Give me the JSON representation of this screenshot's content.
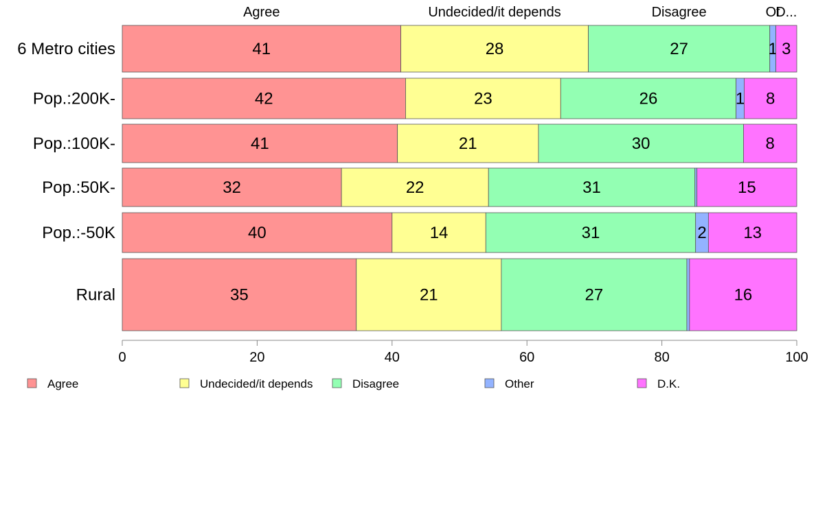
{
  "chart_data": {
    "type": "bar",
    "orientation": "horizontal",
    "stacked": true,
    "categories": [
      "6 Metro cities",
      "Pop.:200K-",
      "Pop.:100K-",
      "Pop.:50K-",
      "Pop.:-50K",
      "Rural"
    ],
    "series": [
      {
        "name": "Agree",
        "color": "#ff9393",
        "values": [
          41.3,
          42.0,
          40.8,
          32.5,
          40.0,
          34.7
        ]
      },
      {
        "name": "Undecided/it depends",
        "color": "#ffff93",
        "values": [
          27.8,
          23.0,
          20.9,
          21.8,
          13.9,
          21.5
        ]
      },
      {
        "name": "Disagree",
        "color": "#93ffb3",
        "values": [
          26.9,
          26.0,
          30.4,
          30.6,
          31.1,
          27.5
        ]
      },
      {
        "name": "Other",
        "color": "#93b3ff",
        "values": [
          0.9,
          1.2,
          0,
          0.3,
          1.9,
          0.4
        ]
      },
      {
        "name": "D.K.",
        "color": "#ff73ff",
        "values": [
          3.1,
          7.8,
          7.9,
          14.8,
          13.1,
          15.9
        ]
      }
    ],
    "bar_labels": [
      [
        "41",
        "28",
        "27",
        "1",
        "3"
      ],
      [
        "42",
        "23",
        "26",
        "1",
        "8"
      ],
      [
        "41",
        "21",
        "30",
        "",
        "8"
      ],
      [
        "32",
        "22",
        "31",
        "",
        "15"
      ],
      [
        "40",
        "14",
        "31",
        "2",
        "13"
      ],
      [
        "35",
        "21",
        "27",
        "",
        "16"
      ]
    ],
    "top_labels": [
      "Agree",
      "Undecided/it depends",
      "Disagree",
      "Ot",
      "D..."
    ],
    "xlim": [
      0,
      100
    ],
    "xticks": [
      "0",
      "20",
      "40",
      "60",
      "80",
      "100"
    ],
    "legend_position": "bottom",
    "grid": false
  }
}
